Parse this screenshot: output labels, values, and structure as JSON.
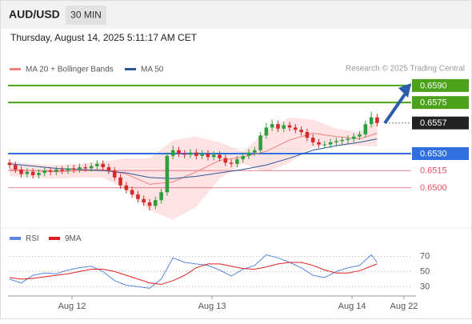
{
  "header": {
    "symbol": "AUD/USD",
    "interval": "30 MIN",
    "timestamp": "Thursday, August 14, 2025 5:11:17 AM CET"
  },
  "chart_data": [
    {
      "type": "candlestick",
      "credit": "Research © 2025 Trading Central",
      "xlim": [
        0,
        69.8
      ],
      "ylim": [
        0.6468,
        0.6616
      ],
      "candles": {
        "up_color": "#2e9e3e",
        "down_color": "#d42a2a",
        "x": [
          0,
          1,
          2,
          3,
          4,
          5,
          6,
          7,
          8,
          9,
          10,
          11,
          12,
          13,
          14,
          15,
          16,
          17,
          18,
          19,
          20,
          21,
          22,
          23,
          24,
          25,
          26,
          27,
          28,
          29,
          30,
          31,
          32,
          33,
          34,
          35,
          36,
          37,
          38,
          39,
          40,
          41,
          42,
          43,
          44,
          45,
          46,
          47,
          48,
          49,
          50,
          51,
          52,
          53,
          54,
          55,
          56,
          57,
          58,
          59,
          60,
          61,
          62,
          63
        ],
        "open": [
          0.6522,
          0.652,
          0.6516,
          0.6512,
          0.6514,
          0.6511,
          0.6513,
          0.6515,
          0.6514,
          0.6516,
          0.6515,
          0.6517,
          0.6516,
          0.6518,
          0.6517,
          0.6519,
          0.6521,
          0.6518,
          0.6515,
          0.6509,
          0.6502,
          0.6498,
          0.6494,
          0.649,
          0.6487,
          0.6484,
          0.6489,
          0.6496,
          0.6528,
          0.6533,
          0.653,
          0.6529,
          0.6531,
          0.6528,
          0.653,
          0.6527,
          0.6529,
          0.6526,
          0.6522,
          0.6521,
          0.6525,
          0.6528,
          0.6531,
          0.6533,
          0.6546,
          0.6553,
          0.6556,
          0.6552,
          0.6555,
          0.6553,
          0.6551,
          0.6549,
          0.6544,
          0.654,
          0.6538,
          0.6538,
          0.654,
          0.6541,
          0.6542,
          0.6543,
          0.6545,
          0.6547,
          0.6556,
          0.6562
        ],
        "high": [
          0.6525,
          0.6523,
          0.6519,
          0.6517,
          0.6517,
          0.6516,
          0.6518,
          0.6518,
          0.6519,
          0.6519,
          0.652,
          0.652,
          0.6521,
          0.6521,
          0.6522,
          0.6524,
          0.6524,
          0.6521,
          0.6518,
          0.6512,
          0.6505,
          0.6501,
          0.6497,
          0.6493,
          0.649,
          0.6492,
          0.6499,
          0.6531,
          0.6537,
          0.6536,
          0.6533,
          0.6534,
          0.6534,
          0.6533,
          0.6533,
          0.6532,
          0.6532,
          0.6529,
          0.6525,
          0.6528,
          0.6531,
          0.6534,
          0.6536,
          0.6549,
          0.6557,
          0.656,
          0.6559,
          0.6558,
          0.6558,
          0.6556,
          0.6554,
          0.6552,
          0.6547,
          0.6543,
          0.6541,
          0.6543,
          0.6544,
          0.6545,
          0.6546,
          0.6548,
          0.655,
          0.6559,
          0.6567,
          0.6565
        ],
        "low": [
          0.6517,
          0.6513,
          0.6509,
          0.6509,
          0.6508,
          0.6508,
          0.651,
          0.6511,
          0.6511,
          0.6512,
          0.6512,
          0.6513,
          0.6513,
          0.6514,
          0.6514,
          0.6516,
          0.6515,
          0.6512,
          0.6506,
          0.6499,
          0.6495,
          0.6491,
          0.6487,
          0.6484,
          0.648,
          0.6481,
          0.6486,
          0.6493,
          0.6525,
          0.6527,
          0.6526,
          0.6526,
          0.6525,
          0.6525,
          0.6524,
          0.6524,
          0.6523,
          0.6519,
          0.6518,
          0.6518,
          0.6522,
          0.6525,
          0.6528,
          0.653,
          0.6543,
          0.655,
          0.6549,
          0.6549,
          0.655,
          0.6548,
          0.6546,
          0.6541,
          0.6537,
          0.6535,
          0.6535,
          0.6535,
          0.6537,
          0.6538,
          0.6539,
          0.654,
          0.6542,
          0.6544,
          0.6553,
          0.6554
        ],
        "close": [
          0.652,
          0.6516,
          0.6512,
          0.6514,
          0.6511,
          0.6513,
          0.6515,
          0.6514,
          0.6516,
          0.6515,
          0.6517,
          0.6516,
          0.6518,
          0.6517,
          0.6519,
          0.6521,
          0.6518,
          0.6515,
          0.6509,
          0.6502,
          0.6498,
          0.6494,
          0.649,
          0.6487,
          0.6484,
          0.6489,
          0.6496,
          0.6528,
          0.6533,
          0.653,
          0.6529,
          0.6531,
          0.6528,
          0.653,
          0.6527,
          0.6529,
          0.6526,
          0.6522,
          0.6521,
          0.6525,
          0.6528,
          0.6531,
          0.6533,
          0.6546,
          0.6553,
          0.6556,
          0.6552,
          0.6555,
          0.6553,
          0.6551,
          0.6549,
          0.6544,
          0.654,
          0.6538,
          0.6538,
          0.654,
          0.6541,
          0.6542,
          0.6543,
          0.6545,
          0.6547,
          0.6556,
          0.6562,
          0.6557
        ]
      },
      "bands": {
        "color": "#fde3e3",
        "x": [
          0,
          4,
          8,
          12,
          16,
          20,
          24,
          28,
          32,
          36,
          40,
          44,
          48,
          52,
          56,
          60,
          63
        ],
        "upper": [
          0.6523,
          0.6521,
          0.652,
          0.6521,
          0.6523,
          0.6526,
          0.6526,
          0.6542,
          0.6545,
          0.654,
          0.6532,
          0.655,
          0.6562,
          0.656,
          0.6552,
          0.6549,
          0.656
        ],
        "lower": [
          0.651,
          0.6509,
          0.6508,
          0.6509,
          0.6509,
          0.6498,
          0.648,
          0.6472,
          0.6483,
          0.6508,
          0.6521,
          0.6514,
          0.6522,
          0.6536,
          0.6538,
          0.6537,
          0.6536
        ]
      },
      "series": [
        {
          "name": "MA 20 + Bollinger Bands",
          "color": "#f08080",
          "x": [
            0,
            4,
            8,
            12,
            16,
            20,
            24,
            28,
            32,
            36,
            40,
            44,
            48,
            52,
            56,
            60,
            63
          ],
          "values": [
            0.6516,
            0.6515,
            0.6514,
            0.6515,
            0.6516,
            0.6512,
            0.6503,
            0.6505,
            0.6514,
            0.6524,
            0.6527,
            0.6532,
            0.6542,
            0.6548,
            0.6545,
            0.6543,
            0.6548
          ]
        },
        {
          "name": "MA 50",
          "color": "#2b5797",
          "x": [
            0,
            4,
            8,
            12,
            16,
            20,
            24,
            28,
            32,
            36,
            40,
            44,
            48,
            52,
            56,
            60,
            63
          ],
          "values": [
            0.6521,
            0.6519,
            0.6517,
            0.6516,
            0.6515,
            0.6513,
            0.6509,
            0.6508,
            0.651,
            0.6513,
            0.6516,
            0.652,
            0.6526,
            0.6533,
            0.6537,
            0.654,
            0.6543
          ]
        }
      ],
      "levels": [
        {
          "value": 0.659,
          "label": "0.6590",
          "color": "#4ca11a",
          "box": true,
          "dotted": false
        },
        {
          "value": 0.6575,
          "label": "0.6575",
          "color": "#4ca11a",
          "box": true,
          "dotted": false
        },
        {
          "value": 0.6557,
          "label": "0.6557",
          "color": "#222222",
          "box": true,
          "dotted": true
        },
        {
          "value": 0.653,
          "label": "0.6530",
          "color": "#2f6fe0",
          "box": true,
          "dotted": false
        },
        {
          "value": 0.6515,
          "label": "0.6515",
          "color": "#e05060",
          "box": false,
          "dotted": false
        },
        {
          "value": 0.65,
          "label": "0.6500",
          "color": "#e05060",
          "box": false,
          "dotted": false
        }
      ]
    },
    {
      "type": "line",
      "xlim": [
        0,
        69.8
      ],
      "ylim": [
        22,
        82
      ],
      "yticks": [
        70,
        50,
        30
      ],
      "xticks": [
        {
          "value": 10.7,
          "label": "Aug 12"
        },
        {
          "value": 34.7,
          "label": "Aug 13"
        },
        {
          "value": 58.7,
          "label": "Aug 14"
        },
        {
          "value": 67.6,
          "label": "Aug 22"
        }
      ],
      "series": [
        {
          "name": "RSI",
          "color": "#5a86e0",
          "x": [
            0,
            2,
            4,
            6,
            8,
            10,
            12,
            14,
            16,
            18,
            20,
            22,
            24,
            26,
            28,
            30,
            32,
            34,
            36,
            38,
            40,
            42,
            44,
            46,
            48,
            50,
            52,
            54,
            56,
            58,
            60,
            62,
            63
          ],
          "values": [
            40,
            35,
            45,
            48,
            47,
            52,
            55,
            57,
            50,
            38,
            32,
            30,
            28,
            40,
            68,
            62,
            60,
            58,
            52,
            44,
            53,
            58,
            72,
            68,
            62,
            55,
            45,
            42,
            50,
            55,
            58,
            72,
            62
          ]
        },
        {
          "name": "9MA",
          "color": "#e02020",
          "x": [
            0,
            2,
            4,
            6,
            8,
            10,
            12,
            14,
            16,
            18,
            20,
            22,
            24,
            26,
            28,
            30,
            32,
            34,
            36,
            38,
            40,
            42,
            44,
            46,
            48,
            50,
            52,
            54,
            56,
            58,
            60,
            62,
            63
          ],
          "values": [
            42,
            40,
            41,
            43,
            45,
            47,
            50,
            53,
            53,
            50,
            45,
            40,
            35,
            33,
            38,
            45,
            55,
            60,
            60,
            57,
            54,
            53,
            56,
            60,
            62,
            62,
            58,
            52,
            48,
            48,
            51,
            57,
            60
          ]
        }
      ]
    }
  ]
}
